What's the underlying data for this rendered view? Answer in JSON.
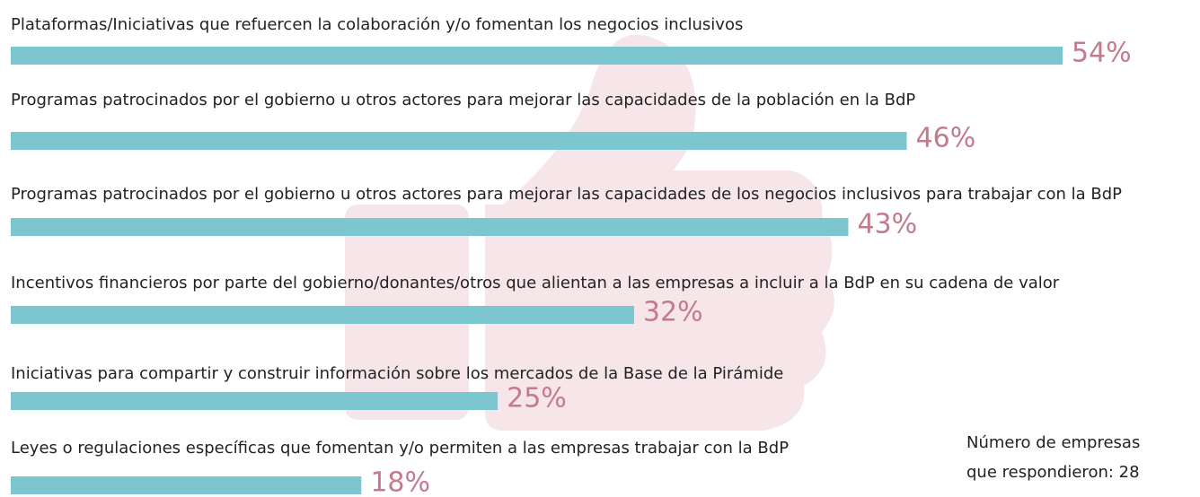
{
  "chart_data": {
    "type": "bar",
    "orientation": "horizontal",
    "categories": [
      "Plataformas/Iniciativas que refuercen la colaboración y/o fomentan los negocios inclusivos",
      "Programas patrocinados por el gobierno u otros actores para mejorar las capacidades de la población en la BdP",
      "Programas patrocinados por el gobierno u otros actores para mejorar las capacidades de los negocios inclusivos para trabajar con la BdP",
      "Incentivos financieros por parte del gobierno/donantes/otros que alientan a las empresas a incluir a la BdP en su cadena de valor",
      "Iniciativas para compartir y construir información sobre los mercados de la Base de la Pirámide",
      "Leyes o regulaciones específicas que fomentan y/o permiten a las empresas trabajar con la BdP"
    ],
    "values": [
      54,
      46,
      43,
      32,
      25,
      18
    ],
    "value_labels": [
      "54%",
      "46%",
      "43%",
      "32%",
      "25%",
      "18%"
    ],
    "color": "#7cc6cf",
    "value_label_color": "#c47a8c",
    "xlim": [
      0,
      54
    ],
    "note": [
      "Número de empresas",
      "que respondieron: 28"
    ]
  }
}
